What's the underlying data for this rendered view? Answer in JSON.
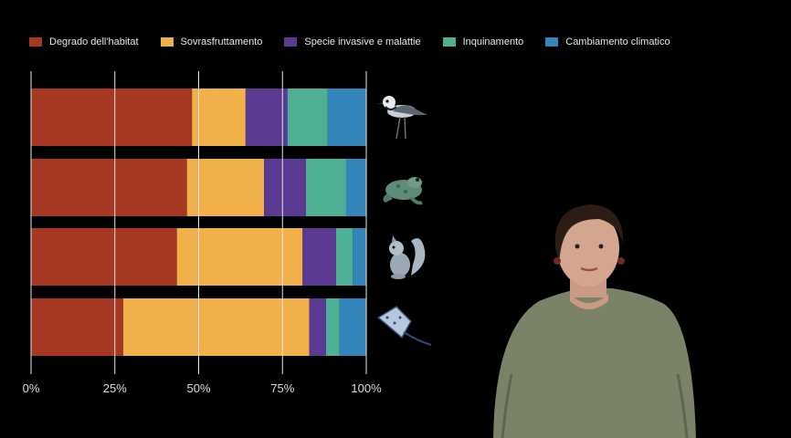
{
  "chart_data": {
    "type": "bar",
    "orientation": "horizontal",
    "stacked": true,
    "categories": [
      "Uccelli",
      "Anfibi",
      "Mammiferi",
      "Pesci"
    ],
    "series": [
      {
        "name": "Degrado dell'habitat",
        "color": "#A63722",
        "values": [
          48,
          46.5,
          43.5,
          27.5
        ]
      },
      {
        "name": "Sovrasfruttamento",
        "color": "#F2B04A",
        "values": [
          16,
          23,
          37.5,
          55.5
        ]
      },
      {
        "name": "Specie invasive e malattie",
        "color": "#5B3A93",
        "values": [
          12.5,
          12.5,
          10,
          5
        ]
      },
      {
        "name": "Inquinamento",
        "color": "#4EAF95",
        "values": [
          12,
          12,
          5,
          4
        ]
      },
      {
        "name": "Cambiamento climatico",
        "color": "#3385BA",
        "values": [
          11.5,
          6,
          4,
          8
        ]
      }
    ],
    "xlim": [
      0,
      100
    ],
    "xticks": [
      "0%",
      "25%",
      "50%",
      "75%",
      "100%"
    ],
    "grid": true,
    "legend_position": "top-left"
  },
  "icons": [
    "bird-icon",
    "frog-icon",
    "squirrel-icon",
    "stingray-icon"
  ]
}
